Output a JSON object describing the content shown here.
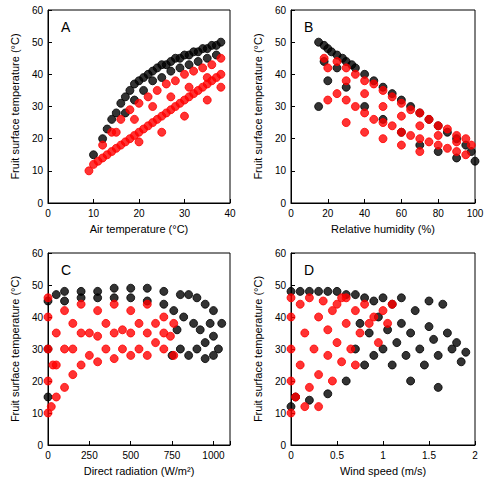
{
  "chart_data": [
    {
      "type": "scatter",
      "title": "A",
      "x_label": "Air temperature (°C)",
      "y_label": "Fruit surface temperature (°C)",
      "xlim": [
        0,
        40
      ],
      "xticks": [
        0,
        10,
        20,
        30,
        40
      ],
      "ylim": [
        0,
        60
      ],
      "yticks": [
        0,
        10,
        20,
        30,
        40,
        50,
        60
      ],
      "grid": false,
      "series": [
        {
          "color": "#000000",
          "marker": "circle",
          "x": [
            10,
            12,
            13,
            14,
            15,
            16,
            17,
            18,
            19,
            20,
            21,
            22,
            23,
            24,
            25,
            26,
            27,
            28,
            29,
            30,
            31,
            32,
            33,
            34,
            35,
            36,
            37,
            38,
            17,
            19,
            21,
            23,
            25,
            27,
            29,
            31,
            33,
            35,
            37
          ],
          "values": [
            15,
            20,
            23,
            26,
            28,
            31,
            33,
            35,
            37,
            38,
            39,
            40,
            41,
            42,
            43,
            43,
            44,
            45,
            45,
            46,
            46,
            47,
            47,
            48,
            48,
            49,
            49,
            50,
            28,
            32,
            35,
            38,
            39,
            41,
            42,
            43,
            44,
            45,
            46
          ]
        },
        {
          "color": "#ff0000",
          "marker": "circle",
          "x": [
            9,
            10,
            11,
            12,
            13,
            14,
            15,
            16,
            17,
            18,
            19,
            20,
            21,
            22,
            23,
            24,
            25,
            26,
            27,
            28,
            29,
            30,
            31,
            32,
            33,
            34,
            35,
            36,
            37,
            38,
            12,
            14,
            16,
            18,
            20,
            22,
            24,
            26,
            28,
            30,
            32,
            34,
            36,
            38,
            15,
            19,
            23,
            27,
            31,
            35,
            20,
            25,
            30,
            35,
            38
          ],
          "values": [
            10,
            12,
            13,
            14,
            15,
            16,
            17,
            18,
            19,
            20,
            21,
            22,
            23,
            24,
            25,
            26,
            27,
            28,
            29,
            30,
            31,
            32,
            33,
            34,
            35,
            36,
            37,
            38,
            39,
            40,
            18,
            22,
            26,
            29,
            31,
            33,
            35,
            37,
            38,
            40,
            41,
            42,
            43,
            45,
            22,
            26,
            30,
            33,
            36,
            39,
            19,
            22,
            27,
            32,
            36
          ]
        }
      ]
    },
    {
      "type": "scatter",
      "title": "B",
      "x_label": "Relative humidity (%)",
      "y_label": "Fruit surface temperature (°C)",
      "xlim": [
        0,
        100
      ],
      "xticks": [
        0,
        20,
        40,
        60,
        80,
        100
      ],
      "ylim": [
        0,
        60
      ],
      "yticks": [
        0,
        10,
        20,
        30,
        40,
        50,
        60
      ],
      "grid": false,
      "series": [
        {
          "color": "#000000",
          "marker": "circle",
          "x": [
            15,
            18,
            20,
            22,
            25,
            28,
            30,
            33,
            35,
            40,
            45,
            50,
            55,
            60,
            65,
            70,
            75,
            80,
            85,
            90,
            95,
            98,
            15,
            20,
            25,
            18,
            30,
            40,
            50,
            60,
            70,
            80,
            90,
            100
          ],
          "values": [
            50,
            49,
            48,
            47,
            46,
            45,
            44,
            43,
            42,
            40,
            38,
            36,
            34,
            32,
            30,
            28,
            26,
            24,
            22,
            20,
            18,
            16,
            30,
            38,
            42,
            44,
            36,
            30,
            26,
            22,
            18,
            16,
            14,
            13
          ]
        },
        {
          "color": "#ff0000",
          "marker": "circle",
          "x": [
            18,
            20,
            25,
            30,
            35,
            40,
            45,
            50,
            55,
            60,
            65,
            70,
            75,
            80,
            85,
            90,
            95,
            98,
            20,
            25,
            30,
            35,
            40,
            45,
            50,
            55,
            60,
            65,
            70,
            75,
            80,
            85,
            90,
            95,
            30,
            40,
            50,
            60,
            70,
            80,
            90,
            40,
            50,
            60,
            70,
            30
          ],
          "values": [
            45,
            42,
            44,
            42,
            40,
            38,
            37,
            35,
            33,
            31,
            29,
            28,
            26,
            24,
            23,
            21,
            20,
            18,
            32,
            34,
            32,
            30,
            28,
            26,
            25,
            24,
            22,
            21,
            20,
            19,
            18,
            17,
            16,
            15,
            38,
            34,
            30,
            27,
            24,
            21,
            19,
            22,
            20,
            18,
            16,
            25
          ]
        }
      ]
    },
    {
      "type": "scatter",
      "title": "C",
      "x_label": "Direct radiation (W/m²)",
      "y_label": "Fruit surface temperature (°C)",
      "xlim": [
        0,
        1100
      ],
      "xticks": [
        0,
        250,
        500,
        750,
        1000
      ],
      "ylim": [
        0,
        60
      ],
      "yticks": [
        0,
        10,
        20,
        30,
        40,
        50,
        60
      ],
      "grid": false,
      "series": [
        {
          "color": "#000000",
          "marker": "circle",
          "x": [
            0,
            0,
            0,
            50,
            100,
            200,
            300,
            400,
            500,
            600,
            700,
            800,
            850,
            900,
            950,
            1000,
            1050,
            800,
            850,
            900,
            950,
            1000,
            1030,
            780,
            820,
            880,
            920,
            980,
            760,
            700,
            600,
            500,
            400,
            300,
            200,
            100,
            1000,
            950,
            750
          ],
          "values": [
            15,
            30,
            45,
            47,
            48,
            48,
            48,
            49,
            49,
            49,
            48,
            47,
            47,
            46,
            44,
            42,
            38,
            30,
            28,
            30,
            32,
            34,
            30,
            36,
            40,
            38,
            36,
            38,
            42,
            44,
            45,
            46,
            46,
            46,
            46,
            45,
            28,
            27,
            28
          ]
        },
        {
          "color": "#ff0000",
          "marker": "circle",
          "x": [
            0,
            0,
            0,
            0,
            0,
            20,
            30,
            50,
            50,
            100,
            100,
            150,
            150,
            200,
            200,
            250,
            250,
            300,
            300,
            350,
            350,
            400,
            400,
            450,
            450,
            500,
            500,
            550,
            550,
            600,
            600,
            650,
            650,
            700,
            700,
            740,
            760,
            760,
            100,
            200,
            300,
            400,
            500,
            600,
            700,
            50,
            150
          ],
          "values": [
            10,
            20,
            30,
            40,
            46,
            12,
            25,
            15,
            35,
            18,
            42,
            22,
            38,
            25,
            44,
            28,
            35,
            26,
            42,
            30,
            38,
            27,
            44,
            30,
            36,
            28,
            42,
            30,
            38,
            28,
            44,
            32,
            38,
            30,
            40,
            34,
            38,
            28,
            30,
            35,
            34,
            35,
            35,
            35,
            35,
            25,
            30
          ]
        }
      ]
    },
    {
      "type": "scatter",
      "title": "D",
      "x_label": "Wind speed (m/s)",
      "y_label": "Fruit surface temperature (°C)",
      "xlim": [
        0,
        2
      ],
      "xticks": [
        0,
        0.5,
        1,
        1.5,
        2
      ],
      "ylim": [
        0,
        60
      ],
      "yticks": [
        0,
        10,
        20,
        30,
        40,
        50,
        60
      ],
      "grid": false,
      "series": [
        {
          "color": "#000000",
          "marker": "circle",
          "x": [
            0,
            0,
            0.1,
            0.2,
            0.3,
            0.4,
            0.5,
            0.6,
            0.7,
            0.8,
            0.9,
            1.0,
            1.1,
            0.05,
            0.2,
            0.4,
            0.6,
            0.7,
            0.75,
            0.8,
            0.85,
            0.9,
            0.95,
            1.0,
            1.05,
            1.1,
            1.15,
            1.2,
            1.25,
            1.3,
            1.35,
            1.4,
            1.45,
            1.5,
            1.55,
            1.6,
            1.65,
            1.7,
            1.75,
            1.8,
            1.85,
            1.9,
            1.2,
            1.3,
            1.5,
            1.6
          ],
          "values": [
            12,
            48,
            48,
            48,
            48,
            48,
            48,
            47,
            47,
            46,
            45,
            46,
            44,
            15,
            14,
            16,
            20,
            30,
            38,
            25,
            35,
            28,
            40,
            30,
            36,
            25,
            32,
            38,
            28,
            35,
            42,
            30,
            25,
            37,
            33,
            28,
            44,
            35,
            30,
            32,
            26,
            29,
            46,
            20,
            45,
            18
          ]
        },
        {
          "color": "#ff0000",
          "marker": "circle",
          "x": [
            0,
            0,
            0,
            0,
            0,
            0.05,
            0.1,
            0.1,
            0.15,
            0.2,
            0.2,
            0.25,
            0.3,
            0.3,
            0.35,
            0.4,
            0.4,
            0.45,
            0.5,
            0.5,
            0.55,
            0.6,
            0.6,
            0.65,
            0.7,
            0.75,
            0.8,
            0.85,
            0.9,
            0.95,
            1.0,
            1.05,
            1.1,
            0.7,
            0.3,
            0.15,
            0.45,
            0.55
          ],
          "values": [
            10,
            20,
            30,
            40,
            46,
            15,
            25,
            44,
            35,
            18,
            46,
            30,
            22,
            40,
            45,
            28,
            36,
            20,
            44,
            32,
            26,
            38,
            46,
            30,
            42,
            35,
            44,
            38,
            40,
            32,
            42,
            38,
            44,
            25,
            12,
            12,
            42,
            46
          ]
        }
      ]
    }
  ]
}
